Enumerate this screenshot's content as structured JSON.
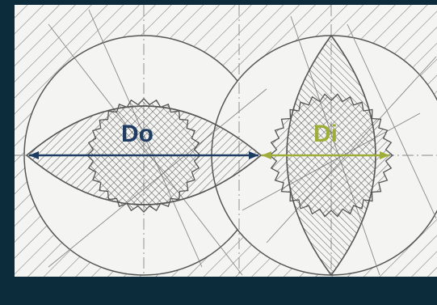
{
  "labels": {
    "outer_diameter": "Do",
    "inner_diameter": "Di"
  },
  "colors": {
    "frame": "#0c2b3b",
    "paper": "#f4f4f2",
    "ink": "#555555",
    "do_color": "#1f3d63",
    "di_color": "#9fae3a"
  }
}
